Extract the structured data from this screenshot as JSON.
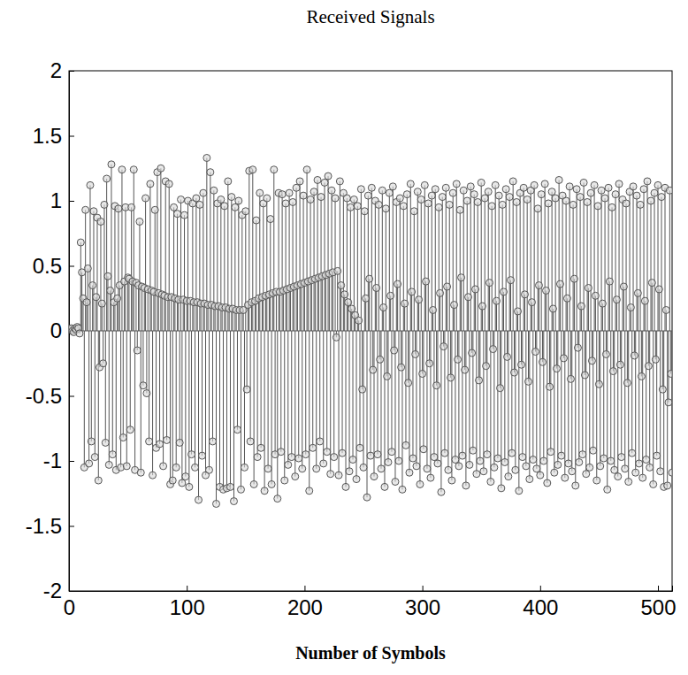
{
  "chart_data": {
    "type": "stem",
    "title": "Received Signals",
    "x_label": "Number of Symbols",
    "color": "#555555",
    "marker": "circle",
    "xlim": [
      0,
      512
    ],
    "xticks": [
      0,
      100,
      200,
      300,
      400,
      500
    ],
    "ylim": [
      -2,
      2
    ],
    "yticks": [
      -2,
      -1.5,
      -1,
      -0.5,
      0,
      0.5,
      1,
      1.5,
      2
    ],
    "x": [
      1,
      2,
      3,
      4,
      5,
      6,
      7,
      8,
      9,
      10,
      11,
      12,
      13,
      14,
      15,
      16,
      17,
      18,
      19,
      20,
      21,
      22,
      23,
      24,
      25,
      26,
      27,
      28,
      29,
      30,
      31,
      32,
      33,
      34,
      35,
      36,
      37,
      38,
      39,
      40,
      41,
      42,
      43,
      44,
      45,
      46,
      47,
      48,
      49,
      50,
      51,
      52,
      53,
      54,
      55,
      56,
      57,
      58,
      59,
      60,
      61,
      62,
      63,
      64,
      65,
      66,
      67,
      68,
      69,
      70,
      71,
      72,
      73,
      74,
      75,
      76,
      77,
      78,
      79,
      80,
      81,
      82,
      83,
      84,
      85,
      86,
      87,
      88,
      89,
      90,
      91,
      92,
      93,
      94,
      95,
      96,
      97,
      98,
      99,
      100,
      101,
      102,
      103,
      104,
      105,
      106,
      107,
      108,
      109,
      110,
      111,
      112,
      113,
      114,
      115,
      116,
      117,
      118,
      119,
      120,
      121,
      122,
      123,
      124,
      125,
      126,
      127,
      128,
      129,
      130,
      131,
      132,
      133,
      134,
      135,
      136,
      137,
      138,
      139,
      140,
      141,
      142,
      143,
      144,
      145,
      146,
      147,
      148,
      149,
      150,
      151,
      152,
      153,
      154,
      155,
      156,
      157,
      158,
      159,
      160,
      161,
      162,
      163,
      164,
      165,
      166,
      167,
      168,
      169,
      170,
      171,
      172,
      173,
      174,
      175,
      176,
      177,
      178,
      179,
      180,
      181,
      182,
      183,
      184,
      185,
      186,
      187,
      188,
      189,
      190,
      191,
      192,
      193,
      194,
      195,
      196,
      197,
      198,
      199,
      200,
      201,
      202,
      203,
      204,
      205,
      206,
      207,
      208,
      209,
      210,
      211,
      212,
      213,
      214,
      215,
      216,
      217,
      218,
      219,
      220,
      221,
      222,
      223,
      224,
      225,
      226,
      227,
      228,
      229,
      230,
      231,
      232,
      233,
      234,
      235,
      236,
      237,
      238,
      239,
      240,
      241,
      242,
      243,
      244,
      245,
      246,
      247,
      248,
      249,
      250,
      251,
      252,
      253,
      254,
      255,
      256,
      257,
      258,
      259,
      260,
      261,
      262,
      263,
      264,
      265,
      266,
      267,
      268,
      269,
      270,
      271,
      272,
      273,
      274,
      275,
      276,
      277,
      278,
      279,
      280,
      281,
      282,
      283,
      284,
      285,
      286,
      287,
      288,
      289,
      290,
      291,
      292,
      293,
      294,
      295,
      296,
      297,
      298,
      299,
      300,
      301,
      302,
      303,
      304,
      305,
      306,
      307,
      308,
      309,
      310,
      311,
      312,
      313,
      314,
      315,
      316,
      317,
      318,
      319,
      320,
      321,
      322,
      323,
      324,
      325,
      326,
      327,
      328,
      329,
      330,
      331,
      332,
      333,
      334,
      335,
      336,
      337,
      338,
      339,
      340,
      341,
      342,
      343,
      344,
      345,
      346,
      347,
      348,
      349,
      350,
      351,
      352,
      353,
      354,
      355,
      356,
      357,
      358,
      359,
      360,
      361,
      362,
      363,
      364,
      365,
      366,
      367,
      368,
      369,
      370,
      371,
      372,
      373,
      374,
      375,
      376,
      377,
      378,
      379,
      380,
      381,
      382,
      383,
      384,
      385,
      386,
      387,
      388,
      389,
      390,
      391,
      392,
      393,
      394,
      395,
      396,
      397,
      398,
      399,
      400,
      401,
      402,
      403,
      404,
      405,
      406,
      407,
      408,
      409,
      410,
      411,
      412,
      413,
      414,
      415,
      416,
      417,
      418,
      419,
      420,
      421,
      422,
      423,
      424,
      425,
      426,
      427,
      428,
      429,
      430,
      431,
      432,
      433,
      434,
      435,
      436,
      437,
      438,
      439,
      440,
      441,
      442,
      443,
      444,
      445,
      446,
      447,
      448,
      449,
      450,
      451,
      452,
      453,
      454,
      455,
      456,
      457,
      458,
      459,
      460,
      461,
      462,
      463,
      464,
      465,
      466,
      467,
      468,
      469,
      470,
      471,
      472,
      473,
      474,
      475,
      476,
      477,
      478,
      479,
      480,
      481,
      482,
      483,
      484,
      485,
      486,
      487,
      488,
      489,
      490,
      491,
      492,
      493,
      494,
      495,
      496,
      497,
      498,
      499,
      500,
      501,
      502,
      503,
      504,
      505,
      506,
      507,
      508,
      509,
      510,
      511,
      512
    ],
    "values": [
      0.01,
      0.02,
      0.0,
      -0.01,
      0.02,
      0.01,
      0.03,
      0.02,
      -0.02,
      0.68,
      0.45,
      0.25,
      -1.05,
      0.93,
      0.22,
      0.48,
      -1.02,
      1.12,
      -0.85,
      0.35,
      0.92,
      -0.97,
      0.26,
      0.87,
      -1.15,
      -0.28,
      0.84,
      0.21,
      -0.25,
      0.97,
      -0.86,
      1.17,
      0.42,
      -1.03,
      0.31,
      1.28,
      -0.95,
      0.22,
      0.96,
      -1.07,
      0.25,
      0.94,
      0.35,
      -1.05,
      1.24,
      -0.82,
      0.38,
      0.95,
      -1.04,
      0.41,
      0.4,
      -0.76,
      0.95,
      0.38,
      1.24,
      -1.07,
      0.37,
      -0.15,
      0.35,
      0.84,
      -1.09,
      0.34,
      -0.42,
      0.33,
      1.02,
      -0.48,
      0.32,
      -0.85,
      1.13,
      0.31,
      -1.11,
      0.3,
      0.93,
      -0.9,
      1.22,
      0.29,
      -0.87,
      1.25,
      0.28,
      -1.04,
      0.27,
      1.15,
      -0.84,
      0.26,
      1.13,
      -1.18,
      0.26,
      -1.15,
      0.95,
      0.25,
      -1.05,
      0.9,
      0.24,
      -0.86,
      1.01,
      -1.17,
      0.24,
      0.89,
      -1.12,
      0.23,
      1.0,
      -1.2,
      0.23,
      -0.95,
      0.98,
      0.22,
      -1.05,
      1.02,
      0.22,
      -1.3,
      0.97,
      0.21,
      -0.96,
      1.06,
      0.21,
      -1.11,
      1.33,
      0.2,
      -1.07,
      1.22,
      0.2,
      -0.85,
      1.08,
      0.19,
      -1.33,
      0.98,
      0.19,
      -1.2,
      1.01,
      0.18,
      -1.22,
      0.96,
      0.18,
      -1.21,
      1.15,
      0.17,
      -1.2,
      1.03,
      0.17,
      -1.31,
      0.95,
      0.16,
      -0.76,
      1.0,
      0.16,
      -1.22,
      0.89,
      0.16,
      -1.05,
      0.92,
      -0.45,
      0.2,
      1.23,
      -0.85,
      0.22,
      1.24,
      -1.18,
      0.23,
      0.85,
      -0.97,
      0.25,
      1.06,
      -0.9,
      0.26,
      0.98,
      -1.23,
      0.27,
      1.02,
      -1.06,
      0.28,
      0.86,
      -1.18,
      0.29,
      1.24,
      -0.95,
      0.3,
      -1.29,
      1.06,
      0.3,
      -0.93,
      1.05,
      0.31,
      -1.15,
      0.98,
      0.32,
      -1.03,
      1.06,
      0.33,
      -0.97,
      0.99,
      0.34,
      -1.12,
      1.1,
      0.35,
      -0.98,
      1.15,
      0.36,
      -1.06,
      1.04,
      0.37,
      -0.95,
      1.24,
      0.38,
      -1.23,
      1.01,
      0.39,
      -0.9,
      1.07,
      0.4,
      -1.06,
      1.16,
      0.41,
      -0.85,
      1.03,
      0.42,
      -1.02,
      1.14,
      0.43,
      -0.93,
      1.19,
      0.44,
      -1.1,
      1.08,
      0.45,
      -0.97,
      1.02,
      -0.05,
      0.46,
      -1.11,
      1.15,
      0.35,
      -0.94,
      1.06,
      0.28,
      -1.2,
      1.02,
      0.22,
      -1.08,
      0.95,
      0.17,
      -0.99,
      1.01,
      0.12,
      -1.14,
      0.96,
      0.08,
      -0.9,
      1.09,
      -0.45,
      -1.05,
      0.92,
      0.25,
      -1.28,
      1.04,
      0.4,
      -0.96,
      1.1,
      -0.3,
      -1.12,
      1.0,
      0.33,
      -0.95,
      0.97,
      -0.22,
      -1.06,
      1.08,
      0.18,
      -1.2,
      0.94,
      -0.35,
      -1.01,
      1.06,
      0.27,
      -0.93,
      1.11,
      -0.15,
      -1.16,
      0.99,
      0.36,
      -1.0,
      1.02,
      -0.28,
      -1.22,
      0.96,
      0.21,
      -0.88,
      1.05,
      -0.4,
      -1.09,
      1.13,
      0.3,
      -0.98,
      0.92,
      -0.18,
      -1.04,
      1.07,
      0.24,
      -1.18,
      1.01,
      -0.33,
      -0.91,
      1.12,
      0.38,
      -1.06,
      0.98,
      -0.25,
      -1.13,
      1.04,
      0.16,
      -0.97,
      1.09,
      -0.42,
      -1.02,
      0.95,
      0.29,
      -1.24,
      1.03,
      -0.12,
      -0.94,
      1.1,
      0.34,
      -1.07,
      0.97,
      -0.36,
      -1.15,
      1.06,
      0.2,
      -0.99,
      1.13,
      -0.22,
      -1.04,
      0.93,
      0.41,
      -0.96,
      1.08,
      -0.3,
      -1.19,
      1.0,
      0.26,
      -1.03,
      1.11,
      -0.17,
      -0.92,
      1.05,
      0.32,
      -1.1,
      0.99,
      -0.38,
      -1.0,
      1.14,
      0.19,
      -1.08,
      1.02,
      -0.27,
      -0.95,
      1.07,
      0.37,
      -1.16,
      0.96,
      -0.14,
      -1.05,
      1.12,
      0.23,
      -0.98,
      1.04,
      -0.44,
      -1.21,
      0.97,
      0.3,
      -1.01,
      1.09,
      -0.2,
      -1.12,
      1.03,
      0.39,
      -0.94,
      1.15,
      -0.32,
      -1.07,
      0.99,
      0.15,
      -1.23,
      1.06,
      -0.26,
      -0.97,
      1.1,
      0.28,
      -1.04,
      1.01,
      -0.39,
      -1.14,
      1.08,
      0.22,
      -0.99,
      1.12,
      -0.16,
      -1.06,
      0.94,
      0.35,
      -1.11,
      1.05,
      -0.24,
      -1.0,
      1.13,
      0.31,
      -1.17,
      0.98,
      -0.43,
      -0.93,
      1.07,
      0.17,
      -1.09,
      1.02,
      -0.29,
      -1.03,
      1.16,
      0.36,
      -0.96,
      1.04,
      -0.21,
      -1.13,
      1.0,
      0.25,
      -1.02,
      1.11,
      -0.37,
      -1.08,
      0.97,
      0.4,
      -1.19,
      1.09,
      -0.13,
      -1.01,
      1.03,
      0.19,
      -0.95,
      1.14,
      -0.34,
      -1.1,
      0.99,
      0.33,
      -1.05,
      1.06,
      -0.23,
      -0.92,
      1.12,
      0.27,
      -1.15,
      0.96,
      -0.41,
      -1.04,
      1.08,
      0.21,
      -0.98,
      1.02,
      -0.18,
      -1.22,
      1.1,
      0.38,
      -1.0,
      0.95,
      -0.31,
      -1.07,
      1.05,
      0.24,
      -1.12,
      1.13,
      -0.26,
      -0.97,
      1.01,
      0.34,
      -1.06,
      0.98,
      -0.4,
      -1.16,
      1.07,
      0.18,
      -0.94,
      1.11,
      -0.19,
      -1.09,
      1.04,
      0.29,
      -1.02,
      0.97,
      -0.35,
      -1.13,
      1.09,
      0.23,
      -0.99,
      1.15,
      -0.27,
      -1.05,
      1.0,
      0.37,
      -1.18,
      1.06,
      -0.22,
      -0.96,
      1.12,
      0.32,
      -1.08,
      1.03,
      -0.45,
      -1.2,
      1.1,
      0.16,
      -1.19,
      -0.55,
      1.08,
      -0.33,
      -1.09
    ]
  }
}
